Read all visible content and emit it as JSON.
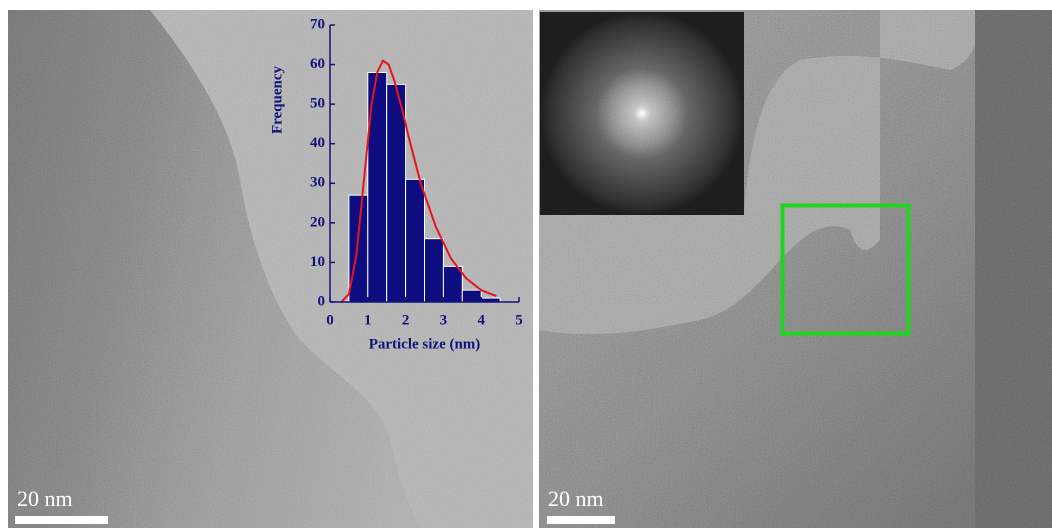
{
  "chart_data": {
    "type": "histogram",
    "bins": [
      0.5,
      1.0,
      1.5,
      2.0,
      2.5,
      3.0,
      3.5,
      4.0,
      4.5
    ],
    "values": [
      27,
      58,
      55,
      31,
      16,
      9,
      3,
      1
    ],
    "color": "#0d0d80",
    "fit": {
      "color": "#e8141c",
      "x": [
        0.3,
        0.5,
        0.7,
        0.9,
        1.1,
        1.25,
        1.4,
        1.55,
        1.7,
        1.9,
        2.1,
        2.4,
        2.8,
        3.2,
        3.6,
        4.0,
        4.4
      ],
      "values": [
        0,
        2,
        12,
        31,
        50,
        58,
        61,
        60,
        56,
        49,
        41,
        30,
        19,
        11,
        6,
        3,
        1.5
      ]
    },
    "xlabel": "Particle size (nm)",
    "ylabel": "Frequency",
    "xlim": [
      0,
      5
    ],
    "xticks": [
      0,
      1,
      2,
      3,
      4,
      5
    ],
    "ylim": [
      0,
      70
    ],
    "yticks": [
      0,
      10,
      20,
      30,
      40,
      50,
      60,
      70
    ]
  },
  "panels": [
    {
      "scale_bar": "20 nm"
    },
    {
      "scale_bar": "20 nm"
    }
  ]
}
